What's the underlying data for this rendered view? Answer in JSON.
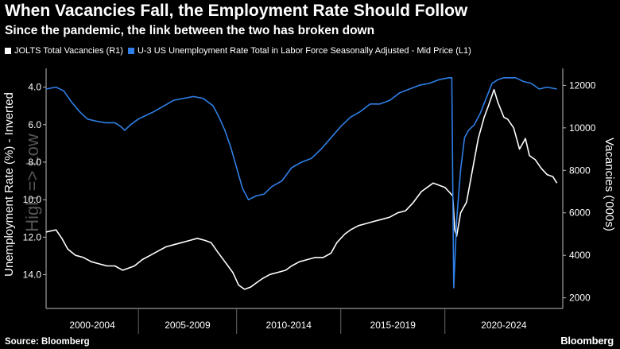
{
  "title": "When Vacancies Fall, the Employment Rate Should Follow",
  "subtitle": "Since the pandemic, the link between the two has broken down",
  "source": "Source: Bloomberg",
  "brand": "Bloomberg",
  "colors": {
    "background": "#000000",
    "vacancies": "#ffffff",
    "unemployment": "#2f7fe6",
    "axis": "#bbbbbb",
    "divider": "#666666"
  },
  "chart_data": {
    "type": "line",
    "x_unit": "year",
    "x_range": [
      1999.5,
      2025.8
    ],
    "period_labels": [
      {
        "label": "2000-2004",
        "from": 1999.5,
        "to": 2004.2
      },
      {
        "label": "2005-2009",
        "from": 2004.2,
        "to": 2009.2
      },
      {
        "label": "2010-2014",
        "from": 2009.2,
        "to": 2014.5
      },
      {
        "label": "2015-2019",
        "from": 2014.5,
        "to": 2019.8
      },
      {
        "label": "2020-2024",
        "from": 2019.8,
        "to": 2025.8
      }
    ],
    "left_axis": {
      "label": "Unemployment Rate (%)  -  Inverted",
      "watermark": "High => Low",
      "range": [
        3.0,
        15.8
      ],
      "inverted": true,
      "ticks": [
        "4.0",
        "6.0",
        "8.0",
        "10.0",
        "12.0",
        "14.0"
      ]
    },
    "right_axis": {
      "label": "Vacancies ('000s)",
      "range": [
        1500,
        12800
      ],
      "ticks": [
        "2000",
        "4000",
        "6000",
        "8000",
        "10000",
        "12000"
      ]
    },
    "series": [
      {
        "name": "JOLTS Total Vacancies (R1)",
        "axis": "right",
        "color": "#ffffff",
        "points": [
          [
            1999.5,
            5100
          ],
          [
            2000.0,
            5200
          ],
          [
            2000.3,
            4800
          ],
          [
            2000.6,
            4300
          ],
          [
            2001.0,
            4000
          ],
          [
            2001.4,
            3900
          ],
          [
            2001.8,
            3700
          ],
          [
            2002.2,
            3600
          ],
          [
            2002.6,
            3500
          ],
          [
            2003.0,
            3500
          ],
          [
            2003.4,
            3300
          ],
          [
            2003.7,
            3400
          ],
          [
            2004.0,
            3500
          ],
          [
            2004.4,
            3800
          ],
          [
            2004.8,
            4000
          ],
          [
            2005.2,
            4200
          ],
          [
            2005.6,
            4400
          ],
          [
            2006.0,
            4500
          ],
          [
            2006.4,
            4600
          ],
          [
            2006.8,
            4700
          ],
          [
            2007.2,
            4800
          ],
          [
            2007.6,
            4700
          ],
          [
            2007.9,
            4600
          ],
          [
            2008.2,
            4200
          ],
          [
            2008.6,
            3700
          ],
          [
            2009.0,
            3200
          ],
          [
            2009.3,
            2600
          ],
          [
            2009.6,
            2400
          ],
          [
            2009.9,
            2500
          ],
          [
            2010.2,
            2700
          ],
          [
            2010.5,
            2900
          ],
          [
            2010.9,
            3100
          ],
          [
            2011.3,
            3200
          ],
          [
            2011.7,
            3300
          ],
          [
            2012.0,
            3500
          ],
          [
            2012.4,
            3700
          ],
          [
            2012.8,
            3800
          ],
          [
            2013.2,
            3900
          ],
          [
            2013.6,
            3900
          ],
          [
            2014.0,
            4100
          ],
          [
            2014.3,
            4600
          ],
          [
            2014.7,
            5000
          ],
          [
            2015.0,
            5200
          ],
          [
            2015.4,
            5400
          ],
          [
            2015.8,
            5500
          ],
          [
            2016.2,
            5600
          ],
          [
            2016.6,
            5700
          ],
          [
            2017.0,
            5800
          ],
          [
            2017.4,
            6000
          ],
          [
            2017.8,
            6100
          ],
          [
            2018.2,
            6500
          ],
          [
            2018.6,
            7000
          ],
          [
            2018.9,
            7200
          ],
          [
            2019.2,
            7400
          ],
          [
            2019.5,
            7300
          ],
          [
            2019.8,
            7200
          ],
          [
            2020.0,
            7000
          ],
          [
            2020.2,
            6800
          ],
          [
            2020.3,
            5200
          ],
          [
            2020.4,
            4900
          ],
          [
            2020.6,
            6000
          ],
          [
            2020.9,
            6500
          ],
          [
            2021.2,
            8000
          ],
          [
            2021.5,
            9500
          ],
          [
            2021.8,
            10500
          ],
          [
            2022.0,
            11000
          ],
          [
            2022.3,
            11800
          ],
          [
            2022.5,
            11200
          ],
          [
            2022.8,
            10500
          ],
          [
            2023.0,
            10400
          ],
          [
            2023.3,
            10000
          ],
          [
            2023.6,
            9000
          ],
          [
            2023.9,
            9500
          ],
          [
            2024.1,
            8700
          ],
          [
            2024.4,
            8500
          ],
          [
            2024.7,
            8100
          ],
          [
            2025.0,
            7800
          ],
          [
            2025.3,
            7700
          ],
          [
            2025.5,
            7400
          ]
        ]
      },
      {
        "name": "U-3 US Unemployment Rate Total in Labor Force Seasonally Adjusted - Mid Price (L1)",
        "axis": "left",
        "color": "#2f7fe6",
        "points": [
          [
            1999.5,
            4.1
          ],
          [
            2000.0,
            4.0
          ],
          [
            2000.4,
            4.2
          ],
          [
            2000.8,
            4.8
          ],
          [
            2001.2,
            5.3
          ],
          [
            2001.6,
            5.7
          ],
          [
            2002.0,
            5.8
          ],
          [
            2002.5,
            5.9
          ],
          [
            2003.0,
            5.9
          ],
          [
            2003.3,
            6.1
          ],
          [
            2003.5,
            6.3
          ],
          [
            2003.8,
            6.0
          ],
          [
            2004.2,
            5.7
          ],
          [
            2004.6,
            5.5
          ],
          [
            2005.0,
            5.3
          ],
          [
            2005.5,
            5.0
          ],
          [
            2006.0,
            4.7
          ],
          [
            2006.5,
            4.6
          ],
          [
            2007.0,
            4.5
          ],
          [
            2007.5,
            4.6
          ],
          [
            2008.0,
            5.0
          ],
          [
            2008.3,
            5.6
          ],
          [
            2008.6,
            6.3
          ],
          [
            2008.9,
            7.2
          ],
          [
            2009.2,
            8.3
          ],
          [
            2009.5,
            9.4
          ],
          [
            2009.8,
            10.0
          ],
          [
            2010.2,
            9.8
          ],
          [
            2010.6,
            9.7
          ],
          [
            2011.0,
            9.3
          ],
          [
            2011.5,
            9.0
          ],
          [
            2012.0,
            8.3
          ],
          [
            2012.5,
            8.0
          ],
          [
            2013.0,
            7.8
          ],
          [
            2013.5,
            7.3
          ],
          [
            2014.0,
            6.7
          ],
          [
            2014.5,
            6.1
          ],
          [
            2015.0,
            5.6
          ],
          [
            2015.5,
            5.3
          ],
          [
            2016.0,
            4.9
          ],
          [
            2016.5,
            4.9
          ],
          [
            2017.0,
            4.7
          ],
          [
            2017.5,
            4.3
          ],
          [
            2018.0,
            4.1
          ],
          [
            2018.5,
            3.9
          ],
          [
            2019.0,
            3.8
          ],
          [
            2019.5,
            3.6
          ],
          [
            2020.0,
            3.5
          ],
          [
            2020.15,
            3.5
          ],
          [
            2020.25,
            14.7
          ],
          [
            2020.4,
            11.1
          ],
          [
            2020.6,
            8.4
          ],
          [
            2020.8,
            6.7
          ],
          [
            2021.0,
            6.3
          ],
          [
            2021.3,
            6.0
          ],
          [
            2021.6,
            5.4
          ],
          [
            2021.9,
            4.6
          ],
          [
            2022.2,
            3.8
          ],
          [
            2022.5,
            3.6
          ],
          [
            2022.8,
            3.5
          ],
          [
            2023.0,
            3.5
          ],
          [
            2023.4,
            3.5
          ],
          [
            2023.8,
            3.7
          ],
          [
            2024.2,
            3.8
          ],
          [
            2024.6,
            4.1
          ],
          [
            2025.0,
            4.0
          ],
          [
            2025.5,
            4.1
          ]
        ]
      }
    ]
  }
}
